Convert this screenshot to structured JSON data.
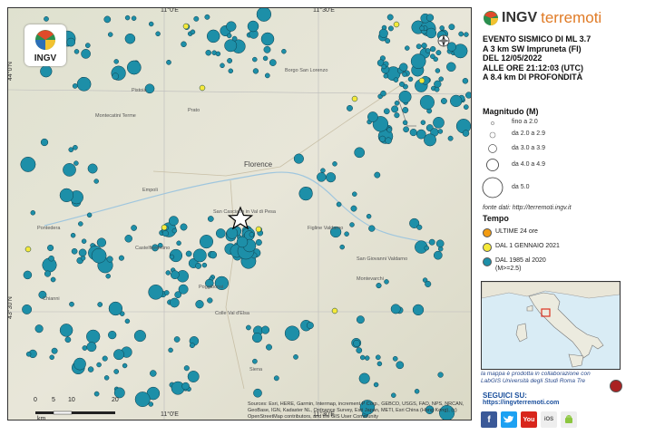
{
  "map": {
    "coords": {
      "top_left_lon": "11°0'E",
      "top_right_lon": "11°30'E",
      "bottom_left_lon": "11°0'E",
      "bottom_right_lon": "11°30'E",
      "lat_top": "44°0'N",
      "lat_bottom": "43°30'N"
    },
    "places": [
      {
        "name": "Florence",
        "big": true
      },
      {
        "name": "Prato",
        "big": false
      },
      {
        "name": "Empoli",
        "big": false
      },
      {
        "name": "Pistoia",
        "big": false
      },
      {
        "name": "Borgo San Lorenzo",
        "big": false
      },
      {
        "name": "Figline Valdarno",
        "big": false
      },
      {
        "name": "San Giovanni Valdarno",
        "big": false
      },
      {
        "name": "Montevarchi",
        "big": false
      },
      {
        "name": "Poggibonsi",
        "big": false
      },
      {
        "name": "Castelfiorentino",
        "big": false
      },
      {
        "name": "San Casciano in Val di Pesa",
        "big": false
      },
      {
        "name": "Montecatini Terme",
        "big": false
      },
      {
        "name": "Pontedera",
        "big": false
      },
      {
        "name": "Colle Val d'Elsa",
        "big": false
      },
      {
        "name": "Siena",
        "big": false
      },
      {
        "name": "Chianni",
        "big": false
      }
    ],
    "logo_text": "INGV",
    "attribution": "Sources: Esri, HERE, Garmin, Intermap, increment P Corp., GEBCO, USGS, FAO, NPS, NRCAN, GeoBase, IGN, Kadaster NL, Ordnance Survey, Esri Japan, METI, Esri China (Hong Kong), (c) OpenStreetMap contributors, and the GIS User Community",
    "scale": {
      "ticks": [
        "0",
        "5",
        "10",
        "20"
      ],
      "unit": "km"
    }
  },
  "panel": {
    "brand_ingv": "INGV",
    "brand_terremoti": "terremoti",
    "event_lines": [
      "EVENTO SISMICO DI ML 3.7",
      "A 3 km SW Impruneta (FI)",
      "DEL 12/05/2022",
      "ALLE ORE 21:12:03 (UTC)",
      "A 8.4 km DI PROFONDITÀ"
    ],
    "magnitude_title": "Magnitudo (M)",
    "magnitude_classes": [
      "fino a 2.0",
      "da 2.0 a 2.9",
      "da 3.0 a 3.9",
      "da 4.0 a 4.9",
      "da 5.0"
    ],
    "source_text": "fonte dati: http://terremoti.ingv.it",
    "time_title": "Tempo",
    "time_classes": [
      {
        "label": "ULTIME 24 ore",
        "color": "#f39c12"
      },
      {
        "label": "DAL 1 GENNAIO 2021",
        "color": "#f5e93a"
      },
      {
        "label": "DAL 1985 al 2020",
        "label2": "(M>=2.5)",
        "color": "#1d8fa8"
      }
    ],
    "collab_line1": "la mappa è prodotta in collaborazione con",
    "collab_line2": "LabGIS Università degli Studi Roma Tre",
    "seguici_title": "SEGUICI SU:",
    "seguici_url": "https://ingvterremoti.com",
    "social_icons": [
      "facebook-icon",
      "twitter-icon",
      "youtube-icon",
      "ios-icon",
      "android-icon"
    ]
  },
  "colors": {
    "historic": "#1d8fa8",
    "year": "#f5e93a",
    "recent": "#f39c12",
    "brand_orange": "#e07b26",
    "link_blue": "#1a4f9c"
  }
}
